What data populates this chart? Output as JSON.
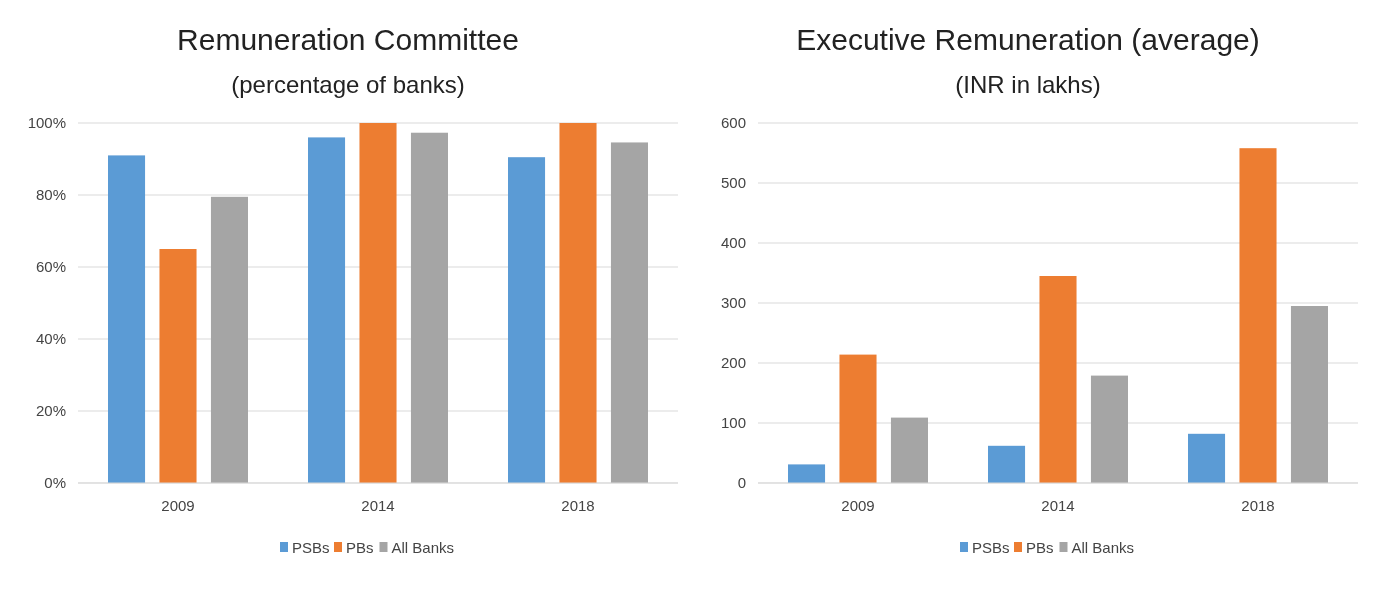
{
  "chart_data": [
    {
      "type": "bar",
      "title": "Remuneration Committee",
      "subtitle": "(percentage of banks)",
      "categories": [
        "2009",
        "2014",
        "2018"
      ],
      "series": [
        {
          "name": "PSBs",
          "color": "#5b9bd5",
          "values": [
            91,
            96,
            90.5
          ]
        },
        {
          "name": "PBs",
          "color": "#ed7d31",
          "values": [
            65,
            100,
            100
          ]
        },
        {
          "name": "All Banks",
          "color": "#a5a5a5",
          "values": [
            79.5,
            97.3,
            94.6
          ]
        }
      ],
      "ylim": [
        0,
        100
      ],
      "yticks": [
        {
          "value": 0,
          "label": "0%"
        },
        {
          "value": 20,
          "label": "20%"
        },
        {
          "value": 40,
          "label": "40%"
        },
        {
          "value": 60,
          "label": "60%"
        },
        {
          "value": 80,
          "label": "80%"
        },
        {
          "value": 100,
          "label": "100%"
        }
      ],
      "grid": "y",
      "legend": "bottom"
    },
    {
      "type": "bar",
      "title": "Executive Remuneration (average)",
      "subtitle": "(INR in lakhs)",
      "categories": [
        "2009",
        "2014",
        "2018"
      ],
      "series": [
        {
          "name": "PSBs",
          "color": "#5b9bd5",
          "values": [
            31,
            62,
            82
          ]
        },
        {
          "name": "PBs",
          "color": "#ed7d31",
          "values": [
            214,
            345,
            558
          ]
        },
        {
          "name": "All Banks",
          "color": "#a5a5a5",
          "values": [
            109,
            179,
            295
          ]
        }
      ],
      "ylim": [
        0,
        600
      ],
      "yticks": [
        0,
        100,
        200,
        300,
        400,
        500,
        600
      ],
      "grid": "y",
      "legend": "bottom"
    }
  ]
}
